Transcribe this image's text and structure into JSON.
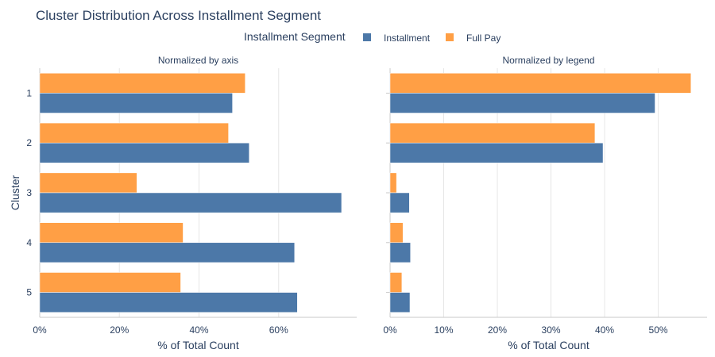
{
  "title": "Cluster Distribution Across Installment Segment",
  "legend": {
    "title": "Installment Segment",
    "items": [
      {
        "label": "Installment",
        "color": "#4c78a8"
      },
      {
        "label": "Full Pay",
        "color": "#ff9f45"
      }
    ]
  },
  "y_axis_title": "Cluster",
  "chart_data": [
    {
      "type": "bar",
      "orientation": "horizontal",
      "subtitle": "Normalized by axis",
      "categories": [
        "1",
        "2",
        "3",
        "4",
        "5"
      ],
      "series": [
        {
          "name": "Installment",
          "color": "#4c78a8",
          "values": [
            48.4,
            52.6,
            75.8,
            64.0,
            64.7
          ]
        },
        {
          "name": "Full Pay",
          "color": "#ff9f45",
          "values": [
            51.6,
            47.4,
            24.4,
            36.0,
            35.4
          ]
        }
      ],
      "xlabel": "% of Total Count",
      "ylabel": "Cluster",
      "xlim": [
        0,
        79.6
      ],
      "xticks": [
        0,
        20,
        40,
        60
      ],
      "xtick_labels": [
        "0%",
        "20%",
        "40%",
        "60%"
      ],
      "grid": true
    },
    {
      "type": "bar",
      "orientation": "horizontal",
      "subtitle": "Normalized by legend",
      "categories": [
        "1",
        "2",
        "3",
        "4",
        "5"
      ],
      "series": [
        {
          "name": "Installment",
          "color": "#4c78a8",
          "values": [
            49.4,
            39.7,
            3.6,
            3.8,
            3.7
          ]
        },
        {
          "name": "Full Pay",
          "color": "#ff9f45",
          "values": [
            56.1,
            38.2,
            1.2,
            2.4,
            2.2
          ]
        }
      ],
      "xlabel": "% of Total Count",
      "xlim": [
        0,
        59.1
      ],
      "xticks": [
        0,
        10,
        20,
        30,
        40,
        50
      ],
      "xtick_labels": [
        "0%",
        "10%",
        "20%",
        "30%",
        "40%",
        "50%"
      ],
      "grid": true
    }
  ]
}
